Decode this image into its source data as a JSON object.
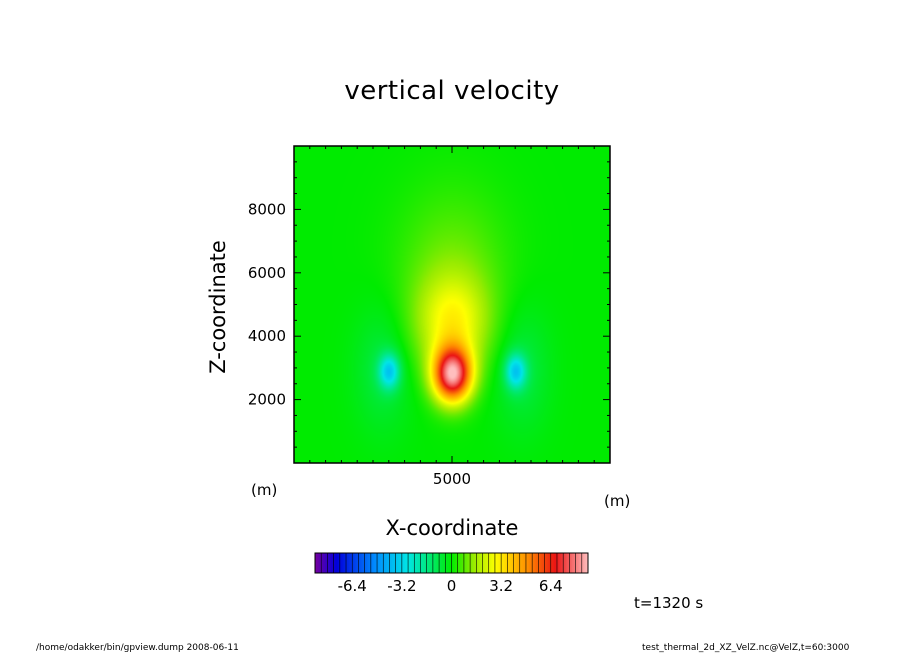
{
  "title": "vertical velocity",
  "footer": {
    "left": "/home/odakker/bin/gpview.dump  2008-06-11",
    "right": "test_thermal_2d_XZ_VelZ.nc@VelZ,t=60:3000"
  },
  "time_label": "t=1320 s",
  "chart_data": {
    "type": "heatmap",
    "title": "vertical velocity",
    "xlabel": "X-coordinate",
    "ylabel": "Z-coordinate",
    "x_unit": "(m)",
    "y_unit": "(m)",
    "xlim": [
      0,
      10000
    ],
    "ylim": [
      0,
      10000
    ],
    "x_ticks": [
      5000
    ],
    "y_ticks": [
      2000,
      4000,
      6000,
      8000
    ],
    "grid": false,
    "features": [
      {
        "kind": "updraft_core",
        "x": 5000,
        "z": 2800,
        "peak": 8.0
      },
      {
        "kind": "downdraft",
        "x": 3000,
        "z": 2900,
        "peak": -3.0
      },
      {
        "kind": "downdraft",
        "x": 7000,
        "z": 2900,
        "peak": -3.0
      }
    ],
    "colorbar": {
      "range": [
        -8.8,
        8.8
      ],
      "tick_labels": [
        "-6.4",
        "-3.2",
        "0",
        "3.2",
        "6.4"
      ],
      "tick_values": [
        -6.4,
        -3.2,
        0,
        3.2,
        6.4
      ]
    }
  }
}
